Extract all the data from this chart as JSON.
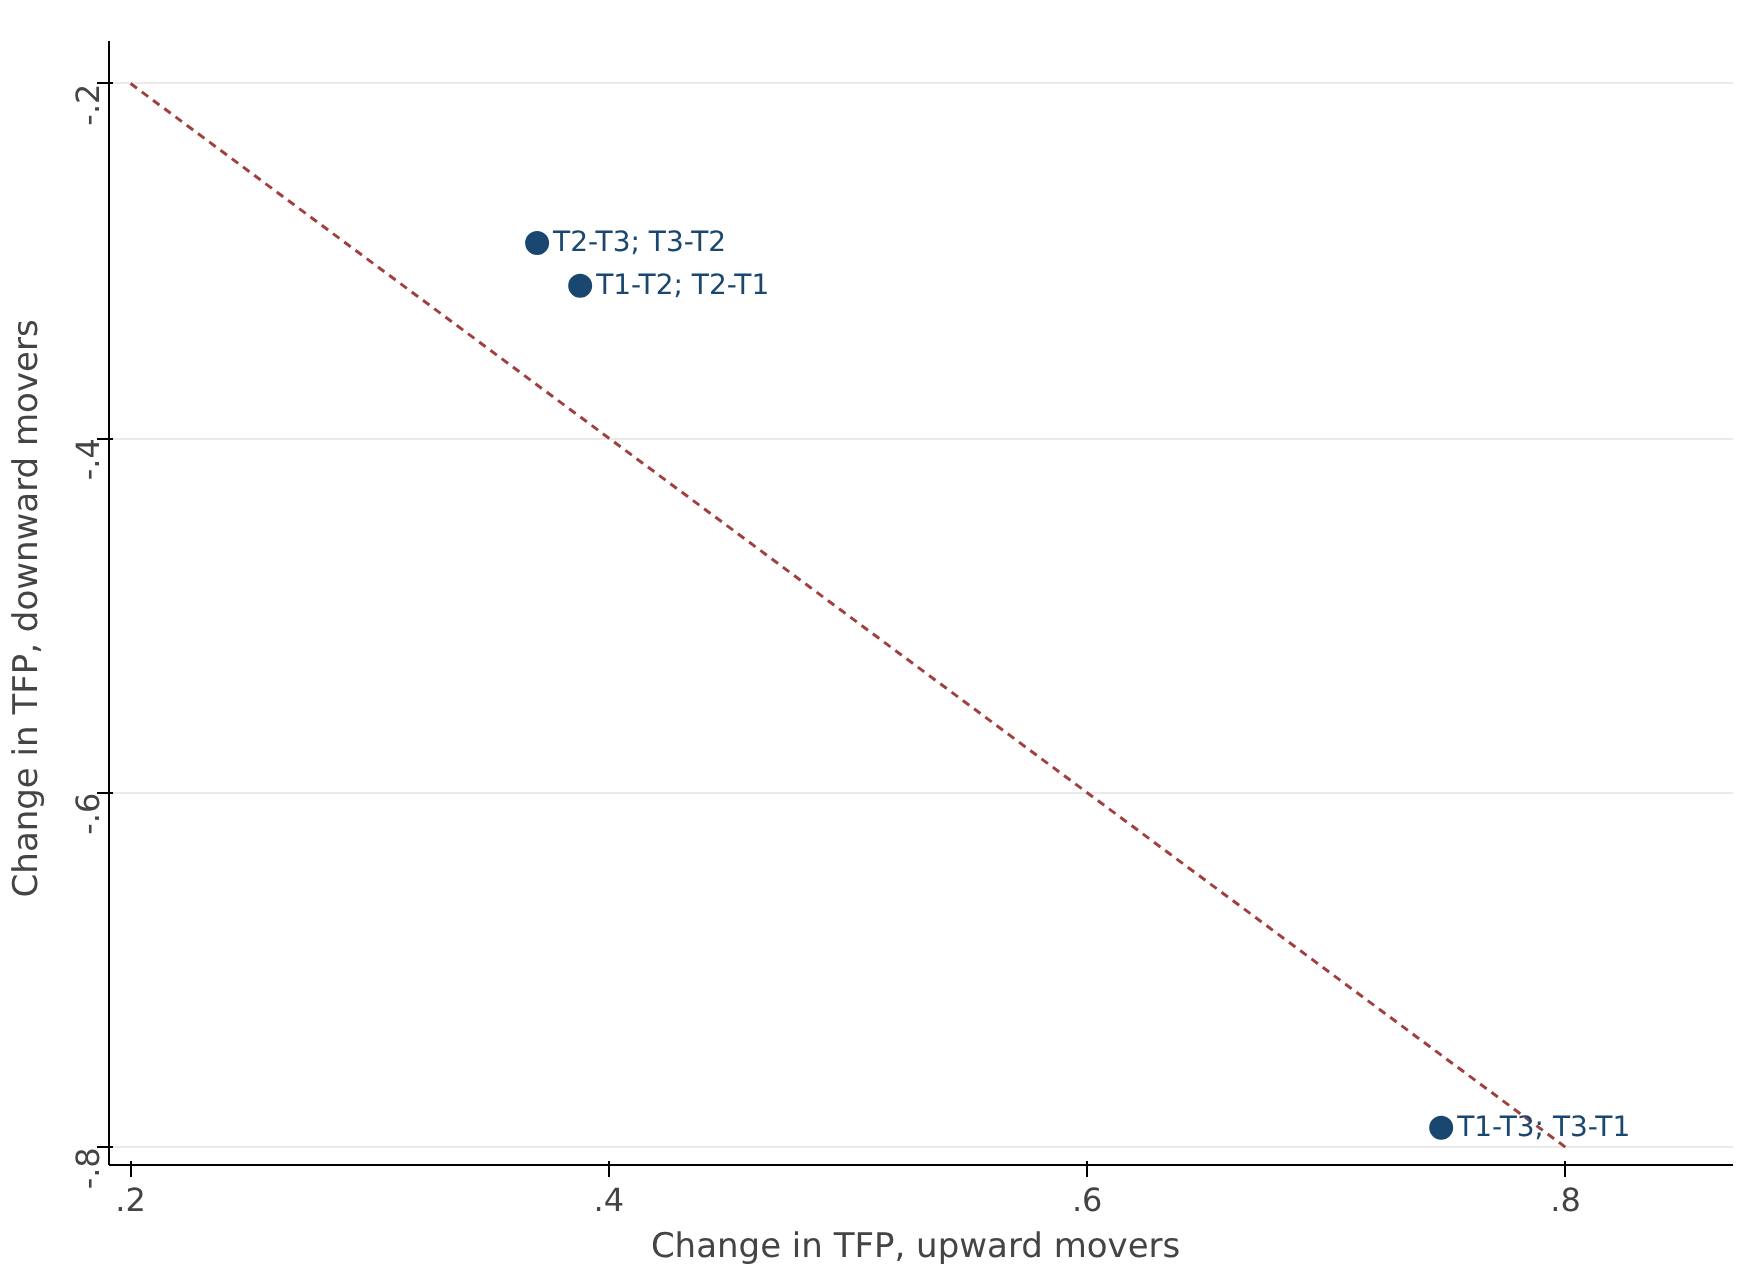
{
  "chart_data": {
    "type": "scatter",
    "xlabel": "Change in TFP,  upward movers",
    "ylabel": "Change in TFP,  downward movers",
    "xlim": [
      0.191,
      0.87
    ],
    "ylim": [
      -0.81,
      -0.176
    ],
    "xticks": [
      {
        "value": 0.2,
        "label": ".2"
      },
      {
        "value": 0.4,
        "label": ".4"
      },
      {
        "value": 0.6,
        "label": ".6"
      },
      {
        "value": 0.8,
        "label": ".8"
      }
    ],
    "yticks": [
      {
        "value": -0.2,
        "label": "-.2"
      },
      {
        "value": -0.4,
        "label": "-.4"
      },
      {
        "value": -0.6,
        "label": "-.6"
      },
      {
        "value": -0.8,
        "label": "-.8"
      }
    ],
    "grid": "y",
    "marker": "circle",
    "series": [
      {
        "color": "#1a476f",
        "x": [
          0.37,
          0.388,
          0.748
        ],
        "values": [
          -0.29,
          -0.314,
          -0.789
        ]
      },
      {
        "type": "line",
        "color": "#a0403e",
        "line_style": "dashed",
        "marker": "none",
        "x": [
          0.2,
          0.8
        ],
        "values": [
          -0.2,
          -0.8
        ]
      }
    ],
    "annotations": [
      {
        "text": "T2-T3; T3-T2",
        "x": 0.37,
        "y": -0.29
      },
      {
        "text": "T1-T2; T2-T1",
        "x": 0.388,
        "y": -0.314
      },
      {
        "text": "T1-T3; T3-T1",
        "x": 0.748,
        "y": -0.789
      }
    ]
  }
}
